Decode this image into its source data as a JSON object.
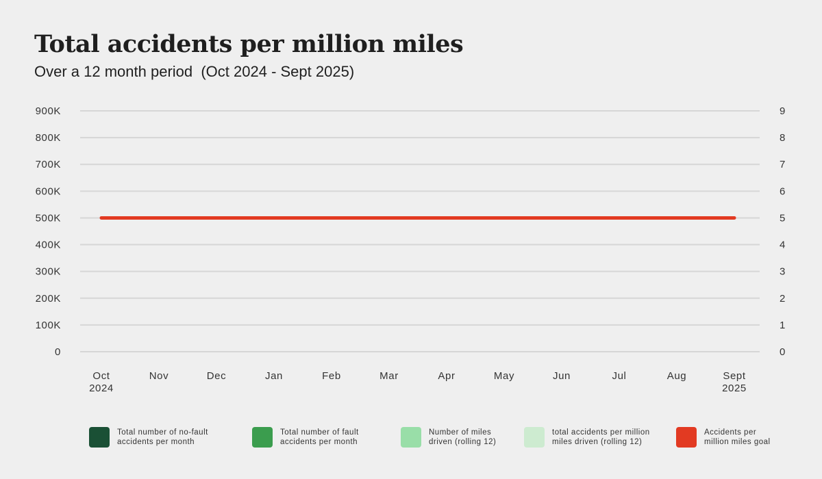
{
  "chart_data": {
    "type": "line",
    "title": "Total accidents per million miles",
    "subtitle": "Over a 12 month period  (Oct 2024 - Sept 2025)",
    "categories": [
      {
        "line1": "Oct",
        "line2": "2024"
      },
      {
        "line1": "Nov",
        "line2": ""
      },
      {
        "line1": "Dec",
        "line2": ""
      },
      {
        "line1": "Jan",
        "line2": ""
      },
      {
        "line1": "Feb",
        "line2": ""
      },
      {
        "line1": "Mar",
        "line2": ""
      },
      {
        "line1": "Apr",
        "line2": ""
      },
      {
        "line1": "May",
        "line2": ""
      },
      {
        "line1": "Jun",
        "line2": ""
      },
      {
        "line1": "Jul",
        "line2": ""
      },
      {
        "line1": "Aug",
        "line2": ""
      },
      {
        "line1": "Sept",
        "line2": "2025"
      }
    ],
    "y_left": {
      "ylim": [
        0,
        900000
      ],
      "ticks": [
        0,
        100000,
        200000,
        300000,
        400000,
        500000,
        600000,
        700000,
        800000,
        900000
      ],
      "tick_labels": [
        "0",
        "100K",
        "200K",
        "300K",
        "400K",
        "500K",
        "600K",
        "700K",
        "800K",
        "900K"
      ]
    },
    "y_right": {
      "ylim": [
        0,
        9
      ],
      "ticks": [
        0,
        1,
        2,
        3,
        4,
        5,
        6,
        7,
        8,
        9
      ],
      "tick_labels": [
        "0",
        "1",
        "2",
        "3",
        "4",
        "5",
        "6",
        "7",
        "8",
        "9"
      ]
    },
    "grid": true,
    "legend_position": "bottom",
    "series": [
      {
        "name": "Total number of no-fault accidents per month",
        "kind": "bar",
        "axis": "left",
        "color": "#1a5035",
        "values": [
          0,
          0,
          0,
          0,
          0,
          0,
          0,
          0,
          0,
          0,
          0,
          0
        ]
      },
      {
        "name": "Total number of fault accidents per month",
        "kind": "bar",
        "axis": "left",
        "color": "#3b9d4e",
        "values": [
          0,
          0,
          0,
          0,
          0,
          0,
          0,
          0,
          0,
          0,
          0,
          0
        ]
      },
      {
        "name": "Number of miles driven (rolling 12)",
        "kind": "bar",
        "axis": "left",
        "color": "#99dea8",
        "values": [
          0,
          0,
          0,
          0,
          0,
          0,
          0,
          0,
          0,
          0,
          0,
          0
        ]
      },
      {
        "name": "total accidents per million miles driven (rolling 12)",
        "kind": "line",
        "axis": "right",
        "color": "#cdebd0",
        "values": [
          0,
          0,
          0,
          0,
          0,
          0,
          0,
          0,
          0,
          0,
          0,
          0
        ]
      },
      {
        "name": "Accidents per million miles goal",
        "kind": "line",
        "axis": "right",
        "color": "#e23a22",
        "values": [
          5,
          5,
          5,
          5,
          5,
          5,
          5,
          5,
          5,
          5,
          5,
          5
        ]
      }
    ],
    "legend": [
      {
        "line1": "Total number of no-fault",
        "line2": "accidents per month",
        "color": "#1a5035"
      },
      {
        "line1": "Total number of fault",
        "line2": "accidents per month",
        "color": "#3b9d4e"
      },
      {
        "line1": "Number of miles",
        "line2": "driven (rolling 12)",
        "color": "#99dea8"
      },
      {
        "line1": "total accidents per million",
        "line2": "miles driven (rolling 12)",
        "color": "#cdebd0"
      },
      {
        "line1": "Accidents per",
        "line2": "million miles goal",
        "color": "#e23a22"
      }
    ]
  }
}
